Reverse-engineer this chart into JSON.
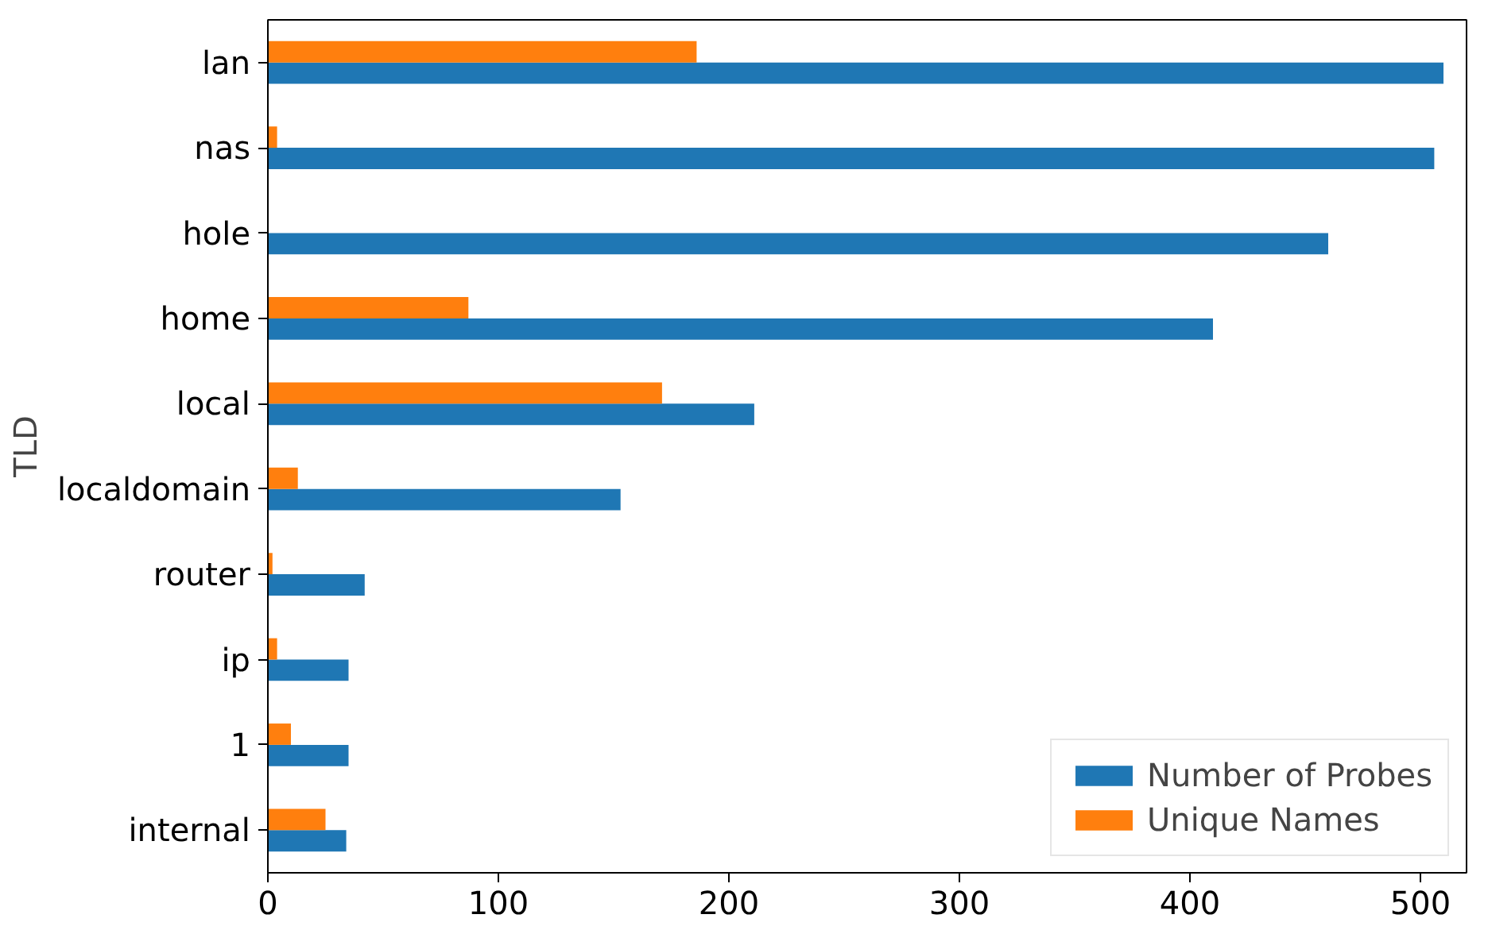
{
  "chart_data": {
    "type": "bar",
    "orientation": "horizontal",
    "ylabel": "TLD",
    "categories": [
      "lan",
      "nas",
      "hole",
      "home",
      "local",
      "localdomain",
      "router",
      "ip",
      "1",
      "internal"
    ],
    "series": [
      {
        "name": "Number of Probes",
        "color": "#1f77b4",
        "values": [
          510,
          506,
          460,
          410,
          211,
          153,
          42,
          35,
          35,
          34
        ]
      },
      {
        "name": "Unique Names",
        "color": "#ff7f0e",
        "values": [
          186,
          4,
          0,
          87,
          171,
          13,
          2,
          4,
          10,
          25
        ]
      }
    ],
    "xlim": [
      0,
      520
    ],
    "xticks": [
      0,
      100,
      200,
      300,
      400,
      500
    ],
    "grid": false,
    "legend": "bottom right"
  }
}
